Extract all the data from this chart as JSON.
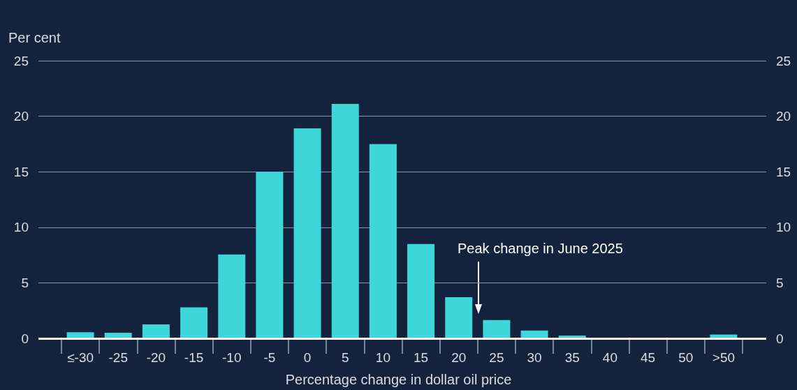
{
  "chart_data": {
    "type": "bar",
    "ylabel": "Per cent",
    "xlabel": "Percentage change in dollar oil price",
    "categories": [
      "≤-30",
      "-25",
      "-20",
      "-15",
      "-10",
      "-5",
      "0",
      "5",
      "10",
      "15",
      "20",
      "25",
      "30",
      "35",
      "40",
      "45",
      "50",
      ">50"
    ],
    "values": [
      0.55,
      0.5,
      1.25,
      2.8,
      7.55,
      15,
      18.9,
      21.1,
      17.5,
      8.5,
      3.7,
      1.65,
      0.7,
      0.25,
      0,
      0,
      0,
      0.35
    ],
    "color": "#3dd6d9",
    "ylim": [
      0,
      25
    ],
    "yticks": [
      0,
      5,
      10,
      15,
      20,
      25
    ],
    "y2lim": [
      0,
      25
    ],
    "y2ticks": [
      0,
      5,
      10,
      15,
      20,
      25
    ],
    "grid": "y",
    "annotations": [
      "Peak change in June 2025"
    ]
  }
}
